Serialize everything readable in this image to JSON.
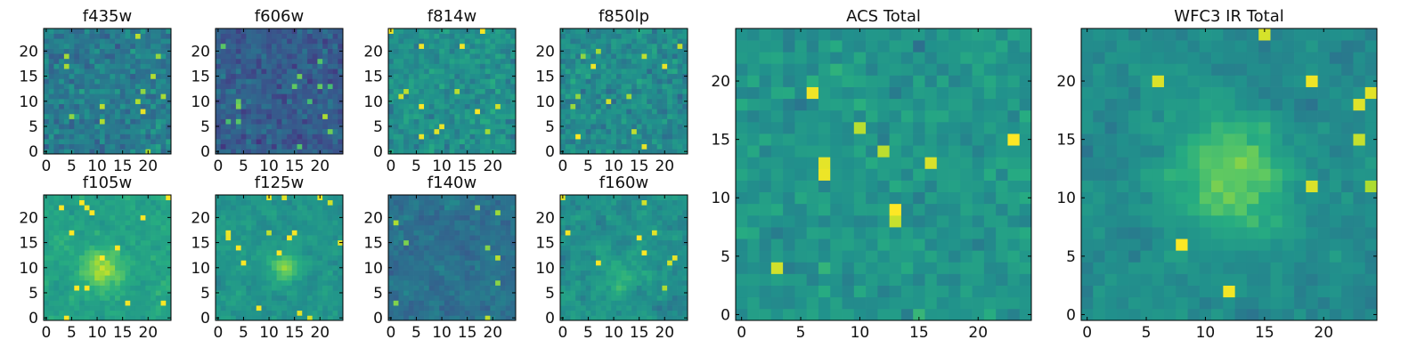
{
  "chart_data": [
    {
      "type": "heatmap",
      "title": "f435w",
      "xticks": [
        "0",
        "5",
        "10",
        "15",
        "20"
      ],
      "yticks": [
        "0",
        "5",
        "10",
        "15",
        "20"
      ],
      "xlim": [
        0,
        25
      ],
      "ylim": [
        0,
        25
      ],
      "grid_size": 25,
      "colormap": "viridis",
      "grid": false
    },
    {
      "type": "heatmap",
      "title": "f606w",
      "xticks": [
        "0",
        "5",
        "10",
        "15",
        "20"
      ],
      "yticks": [
        "0",
        "5",
        "10",
        "15",
        "20"
      ],
      "xlim": [
        0,
        25
      ],
      "ylim": [
        0,
        25
      ],
      "grid_size": 25,
      "colormap": "viridis",
      "grid": false
    },
    {
      "type": "heatmap",
      "title": "f814w",
      "xticks": [
        "0",
        "5",
        "10",
        "15",
        "20"
      ],
      "yticks": [
        "0",
        "5",
        "10",
        "15",
        "20"
      ],
      "xlim": [
        0,
        25
      ],
      "ylim": [
        0,
        25
      ],
      "grid_size": 25,
      "colormap": "viridis",
      "grid": false
    },
    {
      "type": "heatmap",
      "title": "f850lp",
      "xticks": [
        "0",
        "5",
        "10",
        "15",
        "20"
      ],
      "yticks": [
        "0",
        "5",
        "10",
        "15",
        "20"
      ],
      "xlim": [
        0,
        25
      ],
      "ylim": [
        0,
        25
      ],
      "grid_size": 25,
      "colormap": "viridis",
      "grid": false
    },
    {
      "type": "heatmap",
      "title": "f105w",
      "xticks": [
        "0",
        "5",
        "10",
        "15",
        "20"
      ],
      "yticks": [
        "0",
        "5",
        "10",
        "15",
        "20"
      ],
      "xlim": [
        0,
        25
      ],
      "ylim": [
        0,
        25
      ],
      "grid_size": 25,
      "colormap": "viridis",
      "grid": false
    },
    {
      "type": "heatmap",
      "title": "f125w",
      "xticks": [
        "0",
        "5",
        "10",
        "15",
        "20"
      ],
      "yticks": [
        "0",
        "5",
        "10",
        "15",
        "20"
      ],
      "xlim": [
        0,
        25
      ],
      "ylim": [
        0,
        25
      ],
      "grid_size": 25,
      "colormap": "viridis",
      "grid": false
    },
    {
      "type": "heatmap",
      "title": "f140w",
      "xticks": [
        "0",
        "5",
        "10",
        "15",
        "20"
      ],
      "yticks": [
        "0",
        "5",
        "10",
        "15",
        "20"
      ],
      "xlim": [
        0,
        25
      ],
      "ylim": [
        0,
        25
      ],
      "grid_size": 25,
      "colormap": "viridis",
      "grid": false
    },
    {
      "type": "heatmap",
      "title": "f160w",
      "xticks": [
        "0",
        "5",
        "10",
        "15",
        "20"
      ],
      "yticks": [
        "0",
        "5",
        "10",
        "15",
        "20"
      ],
      "xlim": [
        0,
        25
      ],
      "ylim": [
        0,
        25
      ],
      "grid_size": 25,
      "colormap": "viridis",
      "grid": false
    },
    {
      "type": "heatmap",
      "title": "ACS Total",
      "xticks": [
        "0",
        "5",
        "10",
        "15",
        "20"
      ],
      "yticks": [
        "0",
        "5",
        "10",
        "15",
        "20"
      ],
      "xlim": [
        0,
        25
      ],
      "ylim": [
        0,
        25
      ],
      "grid_size": 25,
      "colormap": "viridis",
      "grid": false
    },
    {
      "type": "heatmap",
      "title": "WFC3 IR Total",
      "xticks": [
        "0",
        "5",
        "10",
        "15",
        "20"
      ],
      "yticks": [
        "0",
        "5",
        "10",
        "15",
        "20"
      ],
      "xlim": [
        0,
        25
      ],
      "ylim": [
        0,
        25
      ],
      "grid_size": 25,
      "colormap": "viridis",
      "grid": false
    }
  ],
  "colors": {
    "viridis_dark": "#440154",
    "viridis_mid": "#21918c",
    "viridis_bright": "#fde725",
    "frame": "#000000"
  }
}
